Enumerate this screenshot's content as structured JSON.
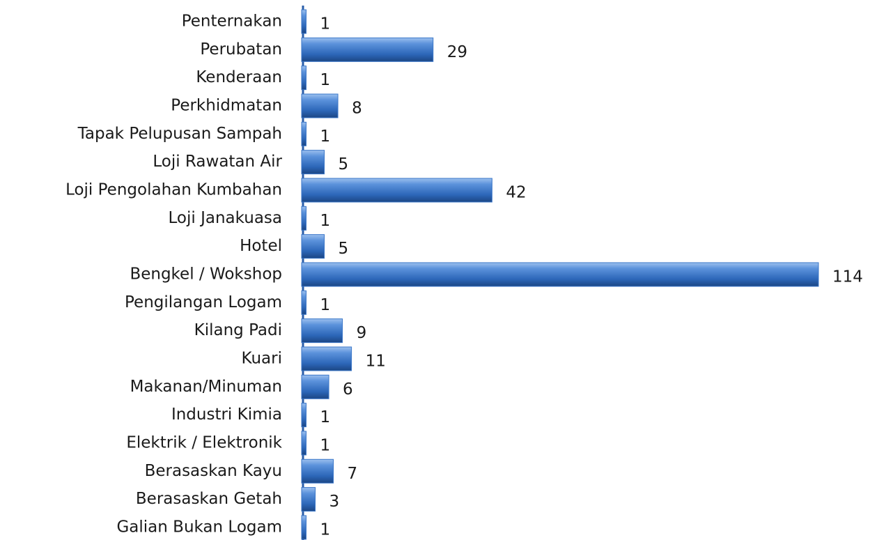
{
  "chart_data": {
    "type": "barh",
    "categories": [
      "Penternakan",
      "Perubatan",
      "Kenderaan",
      "Perkhidmatan",
      "Tapak Pelupusan Sampah",
      "Loji Rawatan Air",
      "Loji Pengolahan Kumbahan",
      "Loji Janakuasa",
      "Hotel",
      "Bengkel / Wokshop",
      "Pengilangan Logam",
      "Kilang Padi",
      "Kuari",
      "Makanan/Minuman",
      "Industri Kimia",
      "Elektrik / Elektronik",
      "Berasaskan Kayu",
      "Berasaskan Getah",
      "Galian Bukan Logam"
    ],
    "values": [
      1,
      29,
      1,
      8,
      1,
      5,
      42,
      1,
      5,
      114,
      1,
      9,
      11,
      6,
      1,
      1,
      7,
      3,
      1
    ],
    "color": "#3a76c8"
  }
}
